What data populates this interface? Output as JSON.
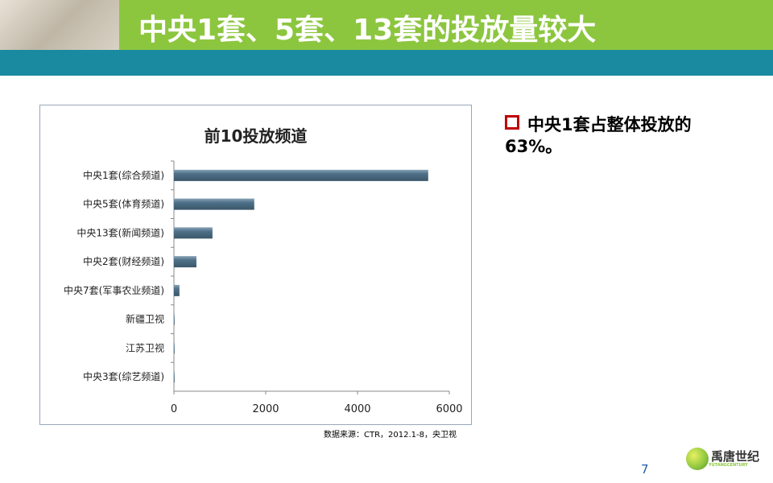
{
  "header": {
    "title": "中央1套、5套、13套的投放量较大"
  },
  "bullet": "中央1套占整体投放的63%。",
  "source": "数据来源：CTR，2012.1-8，央卫视",
  "page_number": "7",
  "logo": {
    "name": "禹唐世纪",
    "sub": "YUTANGCENTURY"
  },
  "colors": {
    "header": "#8cc63f",
    "band": "#1a8aa0",
    "bar": "#4f7189"
  },
  "chart_data": {
    "type": "bar",
    "orientation": "horizontal",
    "title": "前10投放频道",
    "categories": [
      "中央1套(综合频道)",
      "中央5套(体育频道)",
      "中央13套(新闻频道)",
      "中央2套(财经频道)",
      "中央7套(军事农业频道)",
      "新疆卫视",
      "江苏卫视",
      "中央3套(综艺频道)"
    ],
    "values": [
      5540,
      1750,
      840,
      490,
      120,
      10,
      3,
      1
    ],
    "xlim": [
      0,
      6000
    ],
    "xticks": [
      0,
      2000,
      4000,
      6000
    ],
    "grid": false,
    "xlabel": "",
    "ylabel": ""
  }
}
